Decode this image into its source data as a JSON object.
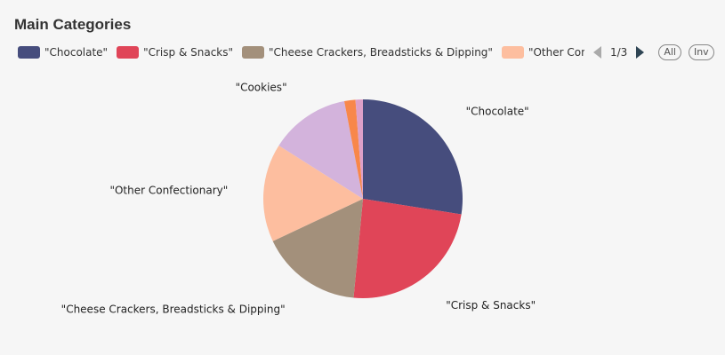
{
  "title": "Main Categories",
  "legend": {
    "page_info": "1/3",
    "all_label": "All",
    "inv_label": "Inv"
  },
  "chart_data": {
    "type": "pie",
    "title": "Main Categories",
    "legend_position": "top",
    "slices": [
      {
        "name": "\"Chocolate\"",
        "value": 27.5,
        "color": "#464d7d",
        "show_label": true
      },
      {
        "name": "\"Crisp & Snacks\"",
        "value": 24.0,
        "color": "#e04558",
        "show_label": true
      },
      {
        "name": "\"Cheese Crackers, Breadsticks & Dipping\"",
        "value": 16.5,
        "color": "#a3907b",
        "show_label": true
      },
      {
        "name": "\"Other Confectionary\"",
        "value": 16.0,
        "color": "#fdbe9f",
        "show_label": true
      },
      {
        "name": "\"Cookies\"",
        "value": 13.0,
        "color": "#d3b3dc",
        "show_label": true
      },
      {
        "name": "",
        "value": 1.8,
        "color": "#f8874a",
        "show_label": false
      },
      {
        "name": "",
        "value": 1.2,
        "color": "#dda0c8",
        "show_label": false
      }
    ]
  }
}
